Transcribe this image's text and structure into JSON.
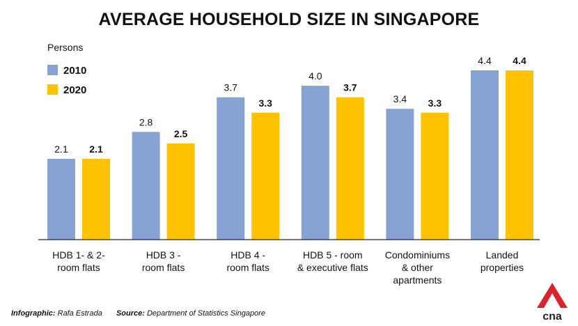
{
  "title": "AVERAGE HOUSEHOLD SIZE IN SINGAPORE",
  "footer": {
    "infographic_label": "Infographic:",
    "infographic_value": "Rafa Estrada",
    "source_label": "Source:",
    "source_value": "Department of Statistics Singapore"
  },
  "logo_text": "cna",
  "colors": {
    "2010": "#86a3d3",
    "2020": "#fec200"
  },
  "chart_data": {
    "type": "bar",
    "ylabel": "Persons",
    "ylim": [
      0,
      4.4
    ],
    "grid": false,
    "legend_position": "top-left",
    "categories": [
      [
        "HDB 1- & 2-",
        "room flats"
      ],
      [
        "HDB 3 -",
        "room flats"
      ],
      [
        "HDB 4 -",
        "room flats"
      ],
      [
        "HDB 5 - room",
        "& executive flats"
      ],
      [
        "Condominiums",
        "& other",
        "apartments"
      ],
      [
        "Landed",
        "properties"
      ]
    ],
    "series": [
      {
        "name": "2010",
        "values": [
          2.1,
          2.8,
          3.7,
          4.0,
          3.4,
          4.4
        ],
        "labels": [
          "2.1",
          "2.8",
          "3.7",
          "4.0",
          "3.4",
          "4.4"
        ],
        "bold": false
      },
      {
        "name": "2020",
        "values": [
          2.1,
          2.5,
          3.3,
          3.7,
          3.3,
          4.4
        ],
        "labels": [
          "2.1",
          "2.5",
          "3.3",
          "3.7",
          "3.3",
          "4.4"
        ],
        "bold": true
      }
    ]
  }
}
